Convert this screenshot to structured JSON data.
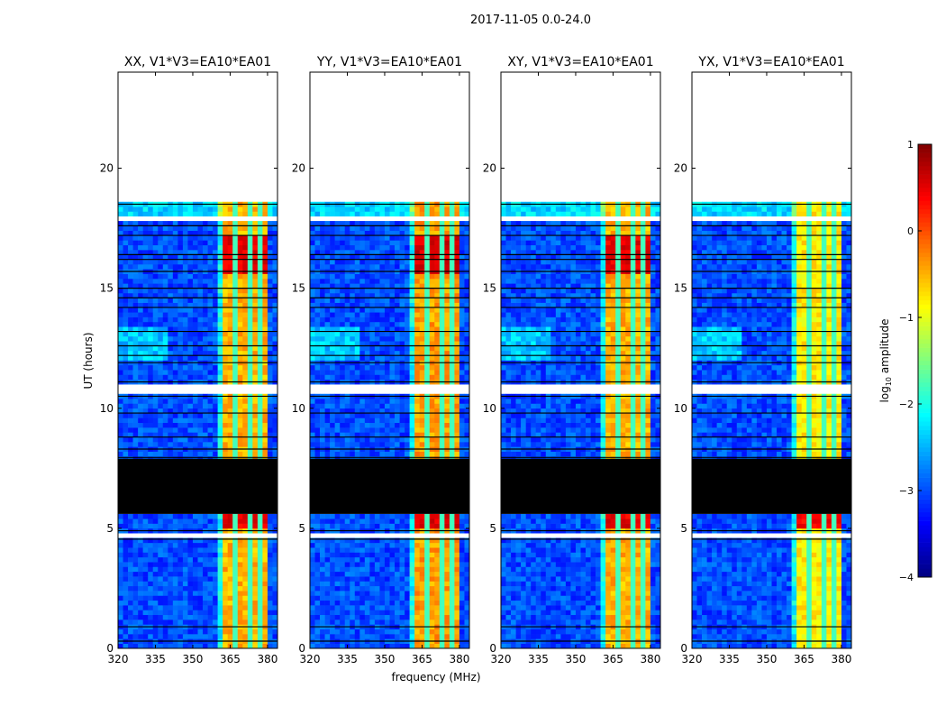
{
  "chart_data": {
    "type": "heatmap",
    "suptitle": "2017-11-05 0.0-24.0",
    "xlabel": "frequency (MHz)",
    "ylabel": "UT (hours)",
    "xlim": [
      320,
      384
    ],
    "ylim": [
      0,
      24
    ],
    "xticks": [
      320,
      335,
      350,
      365,
      380
    ],
    "yticks": [
      0,
      5,
      10,
      15,
      20
    ],
    "colorbar": {
      "label_main": "log",
      "label_sub": "10",
      "label_rest": " amplitude",
      "colormap": "jet",
      "range": [
        -4,
        1
      ],
      "ticks": [
        1,
        0,
        -1,
        -2,
        -3,
        -4
      ]
    },
    "data_time_range_hours": [
      0,
      18.5
    ],
    "flagged_black_hours": [
      [
        5.6,
        7.9
      ]
    ],
    "blank_gap_hours": [
      [
        0.55,
        0.65
      ],
      [
        4.65,
        4.8
      ],
      [
        10.6,
        10.9
      ],
      [
        17.75,
        17.95
      ],
      [
        13.3,
        13.4
      ],
      [
        8.55,
        8.65
      ],
      [
        15.1,
        15.2
      ]
    ],
    "black_line_hours": [
      0.3,
      0.9,
      4.55,
      4.9,
      5.7,
      7.95,
      8.3,
      8.8,
      9.8,
      10.5,
      11.1,
      11.9,
      12.2,
      12.6,
      13.2,
      14.2,
      14.6,
      15.0,
      15.7,
      16.2,
      16.4,
      17.2,
      17.6,
      18.5
    ],
    "bright_band_mhz": [
      362,
      380
    ],
    "band_notch_mhz": [
      367.5,
      372.5,
      377.5
    ],
    "background_level": -3.0,
    "band_level": -0.5,
    "panels": [
      {
        "title": "XX, V1*V3=EA10*EA01",
        "band_offset": 0.0,
        "strong_hours": [
          [
            5.0,
            5.6
          ],
          [
            15.5,
            17.2
          ]
        ],
        "strong_level": 0.4
      },
      {
        "title": "YY, V1*V3=EA10*EA01",
        "band_offset": 0.1,
        "strong_hours": [
          [
            5.0,
            5.6
          ],
          [
            15.5,
            17.2
          ]
        ],
        "strong_level": 0.5
      },
      {
        "title": "XY, V1*V3=EA10*EA01",
        "band_offset": 0.0,
        "strong_hours": [
          [
            5.0,
            5.6
          ],
          [
            15.5,
            17.2
          ]
        ],
        "strong_level": 0.4
      },
      {
        "title": "YX, V1*V3=EA10*EA01",
        "band_offset": -0.3,
        "strong_hours": [
          [
            5.0,
            5.6
          ]
        ],
        "strong_level": 0.3
      }
    ]
  }
}
